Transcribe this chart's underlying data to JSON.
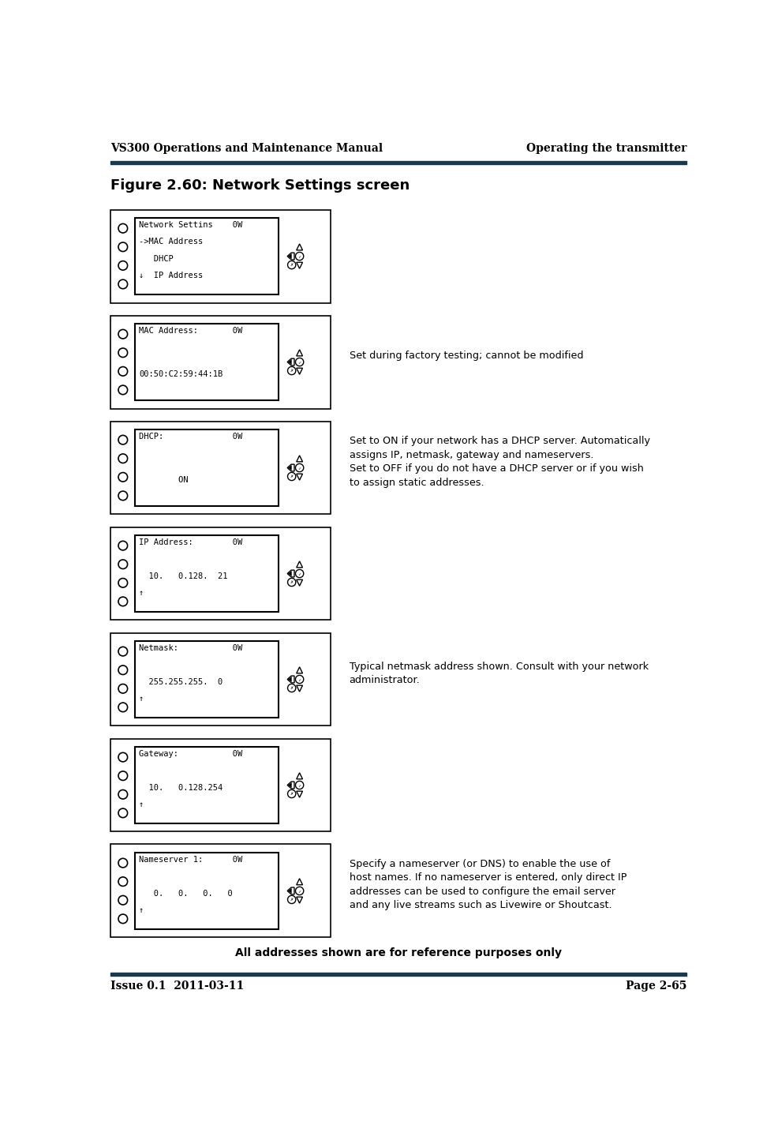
{
  "page_width": 9.86,
  "page_height": 14.25,
  "bg_color": "#ffffff",
  "header_bar_color": "#1a3a4a",
  "header_left": "VS300 Operations and Maintenance Manual",
  "header_right": "Operating the transmitter",
  "footer_left": "Issue 0.1  2011-03-11",
  "footer_right": "Page 2-65",
  "figure_title": "Figure 2.60: Network Settings screen",
  "screens": [
    {
      "title_line": "Network Settins    0W",
      "lines": [
        "->MAC Address",
        "   DHCP",
        "↓  IP Address"
      ],
      "annotation": ""
    },
    {
      "title_line": "MAC Address:       0W",
      "lines": [
        "",
        "00:50:C2:59:44:1B"
      ],
      "annotation": "Set during factory testing; cannot be modified"
    },
    {
      "title_line": "DHCP:              0W",
      "lines": [
        "",
        "        ON"
      ],
      "annotation": "Set to ON if your network has a DHCP server. Automatically\nassigns IP, netmask, gateway and nameservers.\nSet to OFF if you do not have a DHCP server or if you wish\nto assign static addresses."
    },
    {
      "title_line": "IP Address:        0W",
      "lines": [
        "",
        "  10.   0.128.  21",
        "↑"
      ],
      "annotation": ""
    },
    {
      "title_line": "Netmask:           0W",
      "lines": [
        "",
        "  255.255.255.  0",
        "↑"
      ],
      "annotation": "Typical netmask address shown. Consult with your network\nadministrator."
    },
    {
      "title_line": "Gateway:           0W",
      "lines": [
        "",
        "  10.   0.128.254",
        "↑"
      ],
      "annotation": ""
    },
    {
      "title_line": "Nameserver 1:      0W",
      "lines": [
        "",
        "   0.   0.   0.   0",
        "↑"
      ],
      "annotation": "Specify a nameserver (or DNS) to enable the use of\nhost names. If no nameserver is entered, only direct IP\naddresses can be used to configure the email server\nand any live streams such as Livewire or Shoutcast."
    }
  ],
  "bottom_note": "All addresses shown are for reference purposes only",
  "header_font_size": 10,
  "footer_font_size": 10,
  "figure_title_font_size": 13,
  "screen_font_size": 7.5,
  "annotation_font_size": 9.2,
  "note_font_size": 10,
  "panel_outer_color": "#f0f0f0",
  "panel_border_color": "#000000"
}
